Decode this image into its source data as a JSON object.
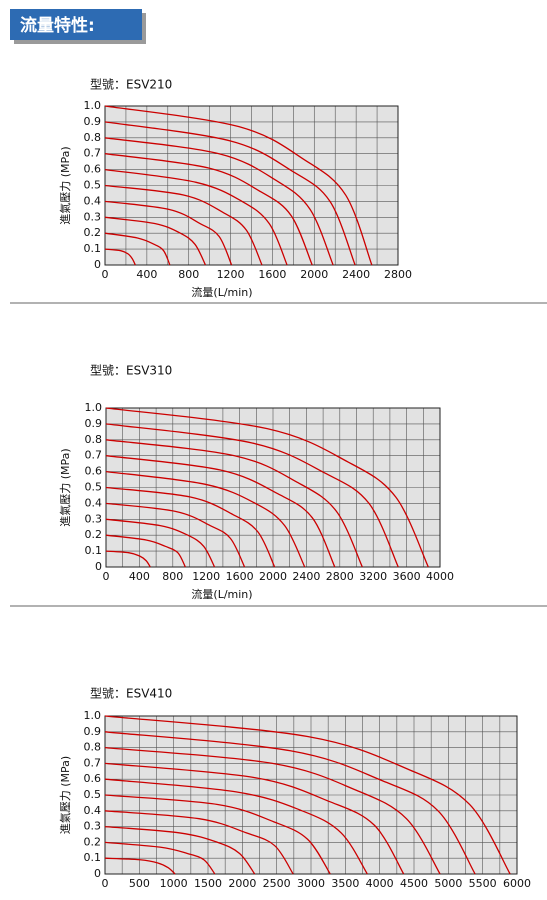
{
  "header": {
    "title": "流量特性:"
  },
  "chart_data": [
    {
      "type": "line",
      "title": "型號：ESV210",
      "x_label": "流量(L/min)",
      "y_label": "進氣壓力 (MPa)",
      "color": "#cc0000",
      "grid": true,
      "xlim": [
        0,
        2800
      ],
      "ylim": [
        0,
        1
      ],
      "xticks": [
        0,
        400,
        800,
        1200,
        1600,
        2000,
        2400,
        2800
      ],
      "yticks": [
        0,
        0.1,
        0.2,
        0.3,
        0.4,
        0.5,
        0.6,
        0.7,
        0.8,
        0.9,
        {
          "value": 1,
          "label": "1.0"
        }
      ],
      "series": [
        {
          "x": [
            0,
            150,
            220,
            260,
            290
          ],
          "values": [
            0.1,
            0.09,
            0.07,
            0.04,
            0
          ]
        },
        {
          "x": [
            0,
            310,
            470,
            560,
            620
          ],
          "values": [
            0.2,
            0.17,
            0.13,
            0.09,
            0
          ]
        },
        {
          "x": [
            0,
            480,
            720,
            860,
            960
          ],
          "values": [
            0.3,
            0.26,
            0.2,
            0.13,
            0
          ]
        },
        {
          "x": [
            0,
            610,
            910,
            1090,
            1210
          ],
          "values": [
            0.4,
            0.35,
            0.26,
            0.18,
            0
          ]
        },
        {
          "x": [
            0,
            750,
            1130,
            1350,
            1500
          ],
          "values": [
            0.5,
            0.44,
            0.33,
            0.22,
            0
          ]
        },
        {
          "x": [
            0,
            870,
            1310,
            1570,
            1740
          ],
          "values": [
            0.6,
            0.52,
            0.4,
            0.26,
            0
          ]
        },
        {
          "x": [
            0,
            990,
            1490,
            1780,
            1980
          ],
          "values": [
            0.7,
            0.61,
            0.46,
            0.31,
            0
          ]
        },
        {
          "x": [
            0,
            1090,
            1640,
            1960,
            2180
          ],
          "values": [
            0.8,
            0.7,
            0.53,
            0.35,
            0
          ]
        },
        {
          "x": [
            0,
            1200,
            1790,
            2150,
            2390
          ],
          "values": [
            0.9,
            0.78,
            0.59,
            0.4,
            0
          ]
        },
        {
          "x": [
            0,
            1280,
            1910,
            2300,
            2550
          ],
          "values": [
            1,
            0.87,
            0.66,
            0.44,
            0
          ]
        }
      ]
    },
    {
      "type": "line",
      "title": "型號：ESV310",
      "x_label": "流量(L/min)",
      "y_label": "進氣壓力 (MPa)",
      "color": "#cc0000",
      "grid": true,
      "xlim": [
        0,
        4000
      ],
      "ylim": [
        0,
        1
      ],
      "xticks": [
        0,
        400,
        800,
        1200,
        1600,
        2000,
        2400,
        2800,
        3200,
        3600,
        4000
      ],
      "yticks": [
        0,
        0.1,
        0.2,
        0.3,
        0.4,
        0.5,
        0.6,
        0.7,
        0.8,
        0.9,
        {
          "value": 1,
          "label": "1.0"
        }
      ],
      "series": [
        {
          "x": [
            0,
            270,
            400,
            480,
            530
          ],
          "values": [
            0.1,
            0.09,
            0.07,
            0.04,
            0
          ]
        },
        {
          "x": [
            0,
            480,
            710,
            860,
            950
          ],
          "values": [
            0.2,
            0.17,
            0.13,
            0.09,
            0
          ]
        },
        {
          "x": [
            0,
            650,
            980,
            1170,
            1300
          ],
          "values": [
            0.3,
            0.26,
            0.2,
            0.13,
            0
          ]
        },
        {
          "x": [
            0,
            830,
            1250,
            1490,
            1660
          ],
          "values": [
            0.4,
            0.35,
            0.26,
            0.18,
            0
          ]
        },
        {
          "x": [
            0,
            1010,
            1520,
            1820,
            2020
          ],
          "values": [
            0.5,
            0.44,
            0.33,
            0.22,
            0
          ]
        },
        {
          "x": [
            0,
            1190,
            1790,
            2140,
            2380
          ],
          "values": [
            0.6,
            0.52,
            0.4,
            0.26,
            0
          ]
        },
        {
          "x": [
            0,
            1370,
            2060,
            2470,
            2740
          ],
          "values": [
            0.7,
            0.61,
            0.46,
            0.31,
            0
          ]
        },
        {
          "x": [
            0,
            1540,
            2300,
            2760,
            3070
          ],
          "values": [
            0.8,
            0.7,
            0.53,
            0.35,
            0
          ]
        },
        {
          "x": [
            0,
            1750,
            2625,
            3150,
            3500
          ],
          "values": [
            0.9,
            0.78,
            0.59,
            0.4,
            0
          ]
        },
        {
          "x": [
            0,
            1930,
            2900,
            3470,
            3860
          ],
          "values": [
            1,
            0.87,
            0.66,
            0.44,
            0
          ]
        }
      ]
    },
    {
      "type": "line",
      "title": "型號：ESV410",
      "y_label": "進氣壓力 (MPa)",
      "color": "#cc0000",
      "grid": true,
      "xlim": [
        0,
        6000
      ],
      "ylim": [
        0,
        1
      ],
      "xticks": [
        0,
        500,
        1000,
        1500,
        2000,
        2500,
        3000,
        3500,
        4000,
        4500,
        5000,
        5500,
        6000
      ],
      "yticks": [
        0,
        0.1,
        0.2,
        0.3,
        0.4,
        0.5,
        0.6,
        0.7,
        0.8,
        0.9,
        {
          "value": 1,
          "label": "1.0"
        }
      ],
      "series": [
        {
          "x": [
            0,
            510,
            770,
            920,
            1020
          ],
          "values": [
            0.1,
            0.09,
            0.07,
            0.04,
            0
          ]
        },
        {
          "x": [
            0,
            800,
            1200,
            1440,
            1600
          ],
          "values": [
            0.2,
            0.17,
            0.13,
            0.09,
            0
          ]
        },
        {
          "x": [
            0,
            1090,
            1640,
            1960,
            2180
          ],
          "values": [
            0.3,
            0.26,
            0.2,
            0.13,
            0
          ]
        },
        {
          "x": [
            0,
            1370,
            2060,
            2470,
            2740
          ],
          "values": [
            0.4,
            0.35,
            0.26,
            0.18,
            0
          ]
        },
        {
          "x": [
            0,
            1640,
            2460,
            2950,
            3280
          ],
          "values": [
            0.5,
            0.44,
            0.33,
            0.22,
            0
          ]
        },
        {
          "x": [
            0,
            1910,
            2870,
            3440,
            3820
          ],
          "values": [
            0.6,
            0.52,
            0.4,
            0.26,
            0
          ]
        },
        {
          "x": [
            0,
            2180,
            3260,
            3920,
            4350
          ],
          "values": [
            0.7,
            0.61,
            0.46,
            0.31,
            0
          ]
        },
        {
          "x": [
            0,
            2440,
            3660,
            4390,
            4880
          ],
          "values": [
            0.8,
            0.7,
            0.53,
            0.35,
            0
          ]
        },
        {
          "x": [
            0,
            2700,
            4040,
            4850,
            5390
          ],
          "values": [
            0.9,
            0.78,
            0.59,
            0.4,
            0
          ]
        },
        {
          "x": [
            0,
            2950,
            4430,
            5310,
            5900
          ],
          "values": [
            1,
            0.87,
            0.66,
            0.44,
            0
          ]
        }
      ]
    }
  ]
}
